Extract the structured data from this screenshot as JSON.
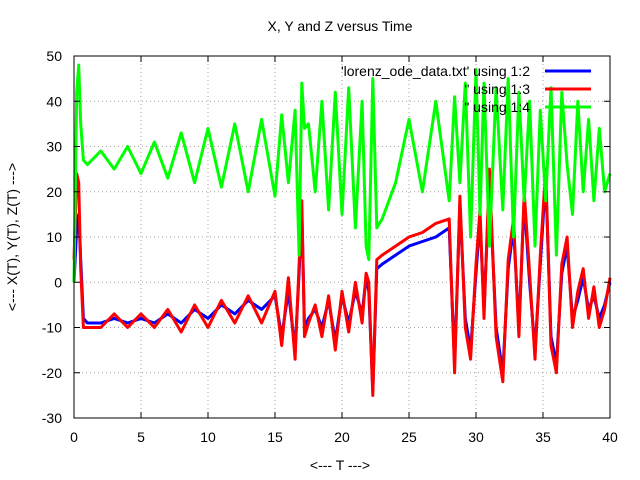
{
  "chart_data": {
    "type": "line",
    "title": "X, Y and Z versus Time",
    "xlabel": "<--- T --->",
    "ylabel": "<--- X(T), Y(T), Z(T) --->",
    "xlim": [
      0,
      40
    ],
    "ylim": [
      -30,
      50
    ],
    "xticks": [
      "0",
      "5",
      "10",
      "15",
      "20",
      "25",
      "30",
      "35",
      "40"
    ],
    "yticks": [
      "-30",
      "-20",
      "-10",
      "0",
      "10",
      "20",
      "30",
      "40",
      "50"
    ],
    "grid": true,
    "legend_position": "top-right",
    "series": [
      {
        "name": "'lorenz_ode_data.txt' using 1:2",
        "color": "#0000ff",
        "x": [
          0,
          0.2,
          0.35,
          0.5,
          0.7,
          1,
          2,
          3,
          4,
          5,
          6,
          7,
          8,
          9,
          10,
          11,
          12,
          13,
          14,
          15,
          15.5,
          16,
          16.5,
          16.8,
          17,
          17.2,
          17.5,
          18,
          18.5,
          19,
          19.5,
          20,
          20.5,
          21,
          21.5,
          21.8,
          22,
          22.3,
          22.6,
          23,
          24,
          25,
          26,
          27,
          28,
          28.4,
          28.8,
          29.2,
          29.6,
          30,
          30.3,
          30.6,
          31,
          31.5,
          32,
          32.4,
          32.8,
          33.2,
          33.6,
          34,
          34.4,
          34.8,
          35.2,
          35.6,
          36,
          36.4,
          36.8,
          37.2,
          37.6,
          38,
          38.4,
          38.8,
          39.2,
          39.6,
          40
        ],
        "values": [
          0,
          12,
          15,
          5,
          -8,
          -9,
          -9,
          -8,
          -9,
          -8,
          -9,
          -7,
          -9,
          -6,
          -8,
          -5,
          -7,
          -4,
          -6,
          -3,
          -12,
          -2,
          -15,
          2,
          16,
          -10,
          -8,
          -6,
          -10,
          -4,
          -13,
          -3,
          -9,
          -2,
          -7,
          1,
          -2,
          -24,
          3,
          4,
          6,
          8,
          9,
          10,
          12,
          -18,
          17,
          -8,
          -15,
          2,
          14,
          -6,
          22,
          -10,
          -20,
          3,
          12,
          -10,
          18,
          0,
          -15,
          4,
          23,
          -12,
          -18,
          2,
          8,
          -8,
          -4,
          1,
          -6,
          -3,
          -8,
          -5,
          0
        ]
      },
      {
        "name": "\" using 1:3",
        "color": "#ff0000",
        "x": [
          0,
          0.2,
          0.35,
          0.5,
          0.7,
          1,
          2,
          3,
          4,
          5,
          6,
          7,
          8,
          9,
          10,
          11,
          12,
          13,
          14,
          15,
          15.5,
          16,
          16.5,
          16.8,
          17,
          17.2,
          17.5,
          18,
          18.5,
          19,
          19.5,
          20,
          20.5,
          21,
          21.5,
          21.8,
          22,
          22.3,
          22.6,
          23,
          24,
          25,
          26,
          27,
          28,
          28.4,
          28.8,
          29.2,
          29.6,
          30,
          30.3,
          30.6,
          31,
          31.5,
          32,
          32.4,
          32.8,
          33.2,
          33.6,
          34,
          34.4,
          34.8,
          35.2,
          35.6,
          36,
          36.4,
          36.8,
          37.2,
          37.6,
          38,
          38.4,
          38.8,
          39.2,
          39.6,
          40
        ],
        "values": [
          5,
          24,
          22,
          3,
          -10,
          -10,
          -10,
          -7,
          -10,
          -7,
          -10,
          -6,
          -11,
          -5,
          -10,
          -4,
          -9,
          -3,
          -9,
          -2,
          -14,
          1,
          -17,
          4,
          18,
          -12,
          -9,
          -5,
          -12,
          -3,
          -15,
          -2,
          -11,
          0,
          -9,
          2,
          0,
          -25,
          5,
          6,
          8,
          10,
          11,
          13,
          14,
          -20,
          19,
          -10,
          -17,
          4,
          16,
          -8,
          25,
          -12,
          -22,
          5,
          14,
          -12,
          20,
          2,
          -17,
          6,
          25,
          -14,
          -20,
          4,
          10,
          -10,
          -2,
          3,
          -8,
          -1,
          -10,
          -6,
          1
        ]
      },
      {
        "name": "\" using 1:4",
        "color": "#00ff00",
        "x": [
          0,
          0.2,
          0.35,
          0.5,
          0.7,
          1,
          2,
          3,
          4,
          5,
          6,
          7,
          8,
          9,
          10,
          11,
          12,
          13,
          14,
          15,
          15.5,
          16,
          16.5,
          16.8,
          17,
          17.2,
          17.5,
          18,
          18.5,
          19,
          19.5,
          20,
          20.5,
          21,
          21.5,
          21.8,
          22,
          22.3,
          22.6,
          23,
          24,
          25,
          26,
          27,
          28,
          28.4,
          28.8,
          29.2,
          29.6,
          30,
          30.3,
          30.6,
          31,
          31.5,
          32,
          32.4,
          32.8,
          33.2,
          33.6,
          34,
          34.4,
          34.8,
          35.2,
          35.6,
          36,
          36.4,
          36.8,
          37.2,
          37.6,
          38,
          38.4,
          38.8,
          39.2,
          39.6,
          40
        ],
        "values": [
          0,
          42,
          48,
          35,
          27,
          26,
          29,
          25,
          30,
          24,
          31,
          23,
          33,
          22,
          34,
          21,
          35,
          20,
          36,
          19,
          37,
          22,
          38,
          6,
          44,
          34,
          35,
          20,
          40,
          16,
          42,
          15,
          43,
          12,
          40,
          8,
          5,
          45,
          12,
          14,
          22,
          36,
          20,
          40,
          18,
          41,
          22,
          44,
          10,
          47,
          15,
          44,
          8,
          43,
          16,
          45,
          10,
          42,
          18,
          40,
          8,
          38,
          18,
          43,
          6,
          42,
          26,
          15,
          40,
          20,
          36,
          18,
          34,
          20,
          24
        ]
      }
    ]
  }
}
